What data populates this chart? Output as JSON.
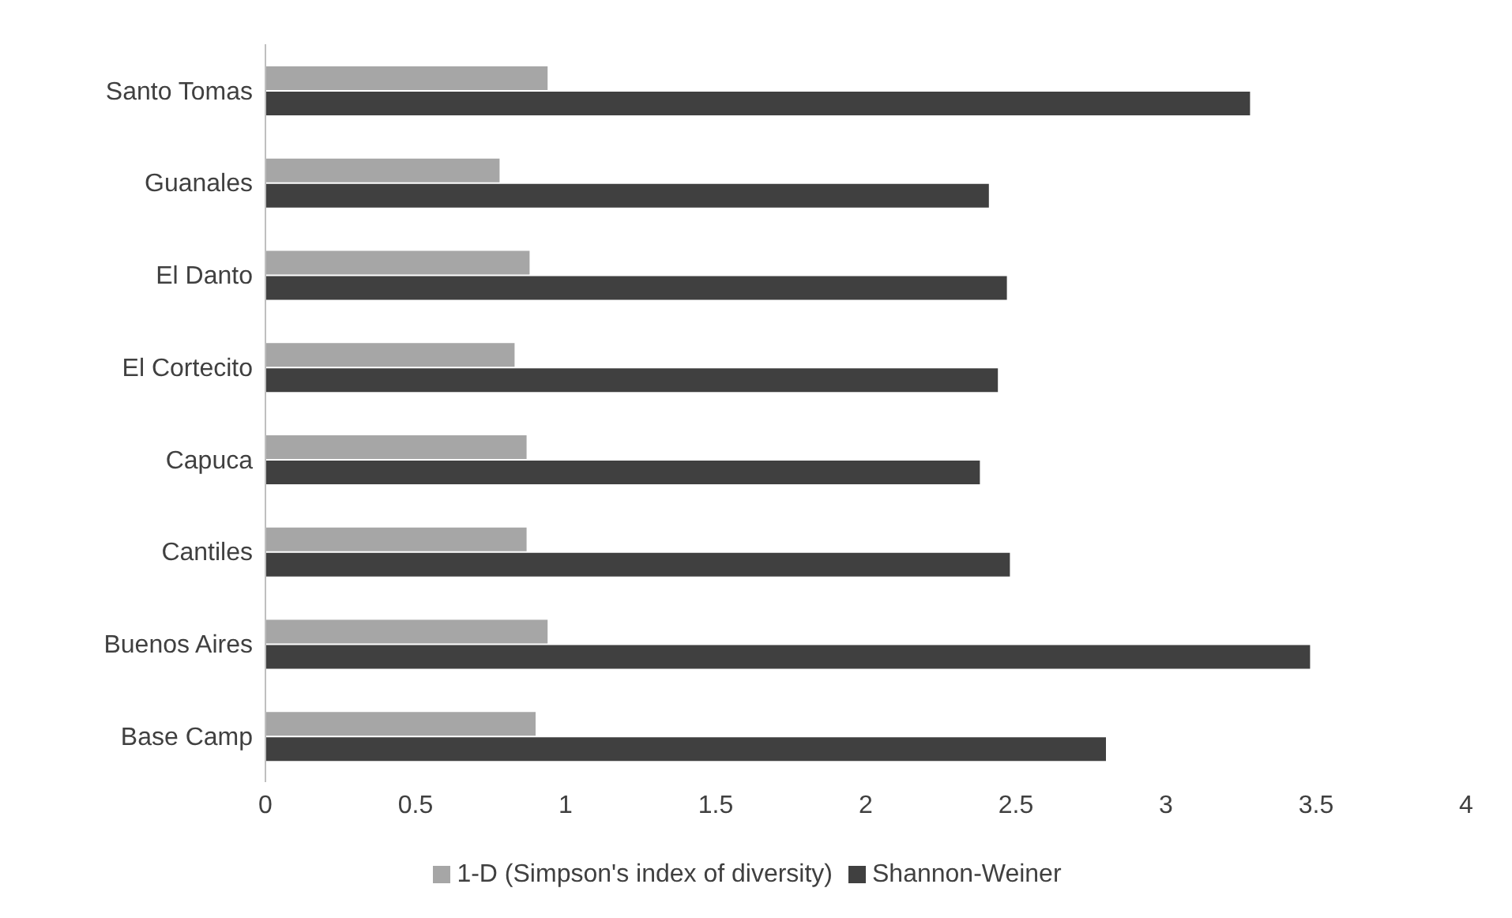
{
  "chart_data": {
    "type": "bar",
    "orientation": "horizontal",
    "categories": [
      "Santo Tomas",
      "Guanales",
      "El Danto",
      "El Cortecito",
      "Capuca",
      "Cantiles",
      "Buenos Aires",
      "Base Camp"
    ],
    "series": [
      {
        "name": "1-D (Simpson's index of diversity)",
        "color": "#a6a6a6",
        "values": [
          0.94,
          0.78,
          0.88,
          0.83,
          0.87,
          0.87,
          0.94,
          0.9
        ]
      },
      {
        "name": "Shannon-Weiner",
        "color": "#404040",
        "values": [
          3.28,
          2.41,
          2.47,
          2.44,
          2.38,
          2.48,
          3.48,
          2.8
        ]
      }
    ],
    "xlim": [
      0,
      4
    ],
    "xticks": [
      0,
      0.5,
      1,
      1.5,
      2,
      2.5,
      3,
      3.5,
      4
    ],
    "grid": false,
    "legend": "bottom"
  }
}
